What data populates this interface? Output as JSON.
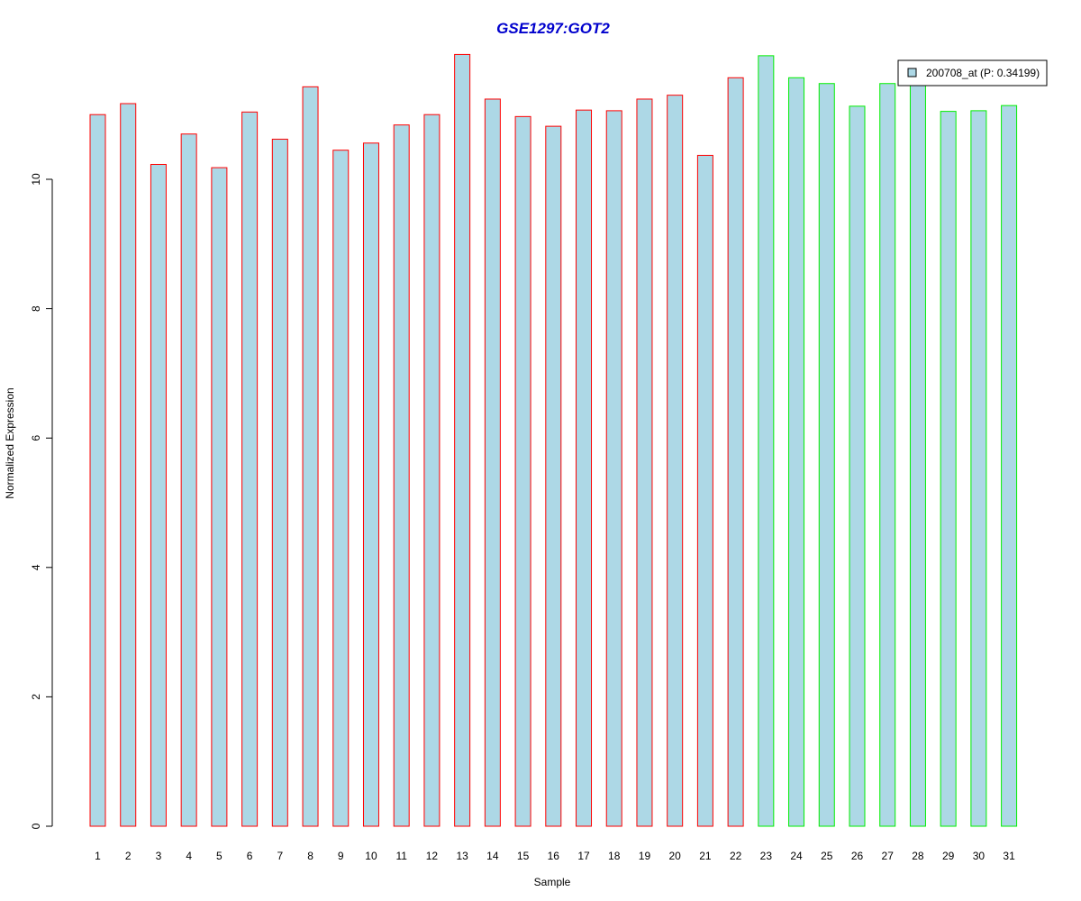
{
  "chart_data": {
    "type": "bar",
    "title": "GSE1297:GOT2",
    "xlabel": "Sample",
    "ylabel": "Normalized Expression",
    "categories": [
      "1",
      "2",
      "3",
      "4",
      "5",
      "6",
      "7",
      "8",
      "9",
      "10",
      "11",
      "12",
      "13",
      "14",
      "15",
      "16",
      "17",
      "18",
      "19",
      "20",
      "21",
      "22",
      "23",
      "24",
      "25",
      "26",
      "27",
      "28",
      "29",
      "30",
      "31"
    ],
    "series": [
      {
        "name": "200708_at (P: 0.34199)",
        "values": [
          11.0,
          11.17,
          10.23,
          10.7,
          10.18,
          11.04,
          10.62,
          11.43,
          10.45,
          10.56,
          10.84,
          11.0,
          11.93,
          11.24,
          10.97,
          10.82,
          11.07,
          11.06,
          11.24,
          11.3,
          10.37,
          11.57,
          11.91,
          11.57,
          11.48,
          11.13,
          11.48,
          11.48,
          11.05,
          11.06,
          11.14
        ]
      }
    ],
    "groups": [
      {
        "samples": [
          1,
          22
        ],
        "border_color": "#ff0000"
      },
      {
        "samples": [
          23,
          31
        ],
        "border_color": "#00ee00"
      }
    ],
    "ylim": [
      0,
      12
    ],
    "yticks": [
      0,
      2,
      4,
      6,
      8,
      10
    ],
    "grid": false,
    "legend_position": "top-right",
    "colors": {
      "bar_fill": "#add8e6",
      "title": "#0000cd",
      "axis": "#000000"
    }
  }
}
